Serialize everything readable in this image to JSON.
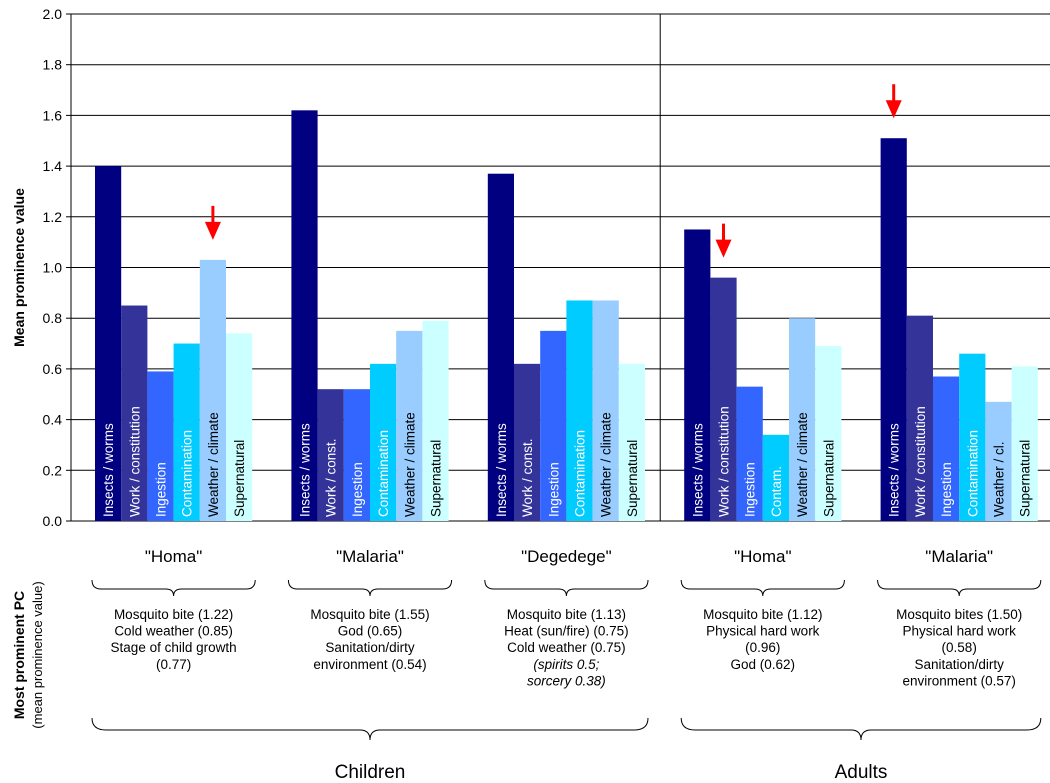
{
  "chart_data": {
    "type": "bar",
    "ylabel": "Mean prominence value",
    "ylim": [
      0,
      2.0
    ],
    "yticks": [
      "0.0",
      "0.2",
      "0.4",
      "0.6",
      "0.8",
      "1.0",
      "1.2",
      "1.4",
      "1.6",
      "1.8",
      "2.0"
    ],
    "grid": true,
    "colors": [
      "#000080",
      "#333399",
      "#3366ff",
      "#00ccff",
      "#99ccff",
      "#ccffff"
    ],
    "populations": [
      {
        "name": "Children",
        "groups": [
          0,
          1,
          2
        ]
      },
      {
        "name": "Adults",
        "groups": [
          3,
          4
        ]
      }
    ],
    "groups": [
      {
        "name": "\"Homa\"",
        "bars": [
          {
            "label": "Insects / worms",
            "value": 1.4
          },
          {
            "label": "Work / constitution",
            "value": 0.85
          },
          {
            "label": "Ingestion",
            "value": 0.59
          },
          {
            "label": "Contamination",
            "value": 0.7
          },
          {
            "label": "Weather / climate",
            "value": 1.03
          },
          {
            "label": "Supernatural",
            "value": 0.74
          }
        ],
        "arrow_on": 4,
        "pc_lines": [
          "Mosquito bite (1.22)",
          "Cold weather (0.85)",
          "Stage of child growth",
          "(0.77)"
        ]
      },
      {
        "name": "\"Malaria\"",
        "bars": [
          {
            "label": "Insects / worms",
            "value": 1.62
          },
          {
            "label": "Work / const.",
            "value": 0.52
          },
          {
            "label": "Ingestion",
            "value": 0.52
          },
          {
            "label": "Contamination",
            "value": 0.62
          },
          {
            "label": "Weather / climate",
            "value": 0.75
          },
          {
            "label": "Supernatural",
            "value": 0.79
          }
        ],
        "arrow_on": null,
        "pc_lines": [
          "Mosquito bite (1.55)",
          "God (0.65)",
          "Sanitation/dirty",
          "environment (0.54)"
        ]
      },
      {
        "name": "\"Degedege\"",
        "bars": [
          {
            "label": "Insects / worms",
            "value": 1.37
          },
          {
            "label": "Work / const.",
            "value": 0.62
          },
          {
            "label": "Ingestion",
            "value": 0.75
          },
          {
            "label": "Contamination",
            "value": 0.87
          },
          {
            "label": "Weather / climate",
            "value": 0.87
          },
          {
            "label": "Supernatural",
            "value": 0.62
          }
        ],
        "arrow_on": null,
        "pc_lines": [
          "Mosquito bite (1.13)",
          "Heat (sun/fire) (0.75)",
          "Cold weather (0.75)"
        ],
        "pc_italic_lines": [
          "(spirits 0.5;",
          "sorcery 0.38)"
        ]
      },
      {
        "name": "\"Homa\"",
        "bars": [
          {
            "label": "Insects / worms",
            "value": 1.15
          },
          {
            "label": "Work / constitution",
            "value": 0.96
          },
          {
            "label": "Ingestion",
            "value": 0.53
          },
          {
            "label": "Contam.",
            "value": 0.34
          },
          {
            "label": "Weather / climate",
            "value": 0.8
          },
          {
            "label": "Supernatural",
            "value": 0.69
          }
        ],
        "arrow_on": 1,
        "pc_lines": [
          "Mosquito bite (1.12)",
          "Physical hard work",
          "(0.96)",
          "God (0.62)"
        ]
      },
      {
        "name": "\"Malaria\"",
        "bars": [
          {
            "label": "Insects / worms",
            "value": 1.51
          },
          {
            "label": "Work / constitution",
            "value": 0.81
          },
          {
            "label": "Ingestion",
            "value": 0.57
          },
          {
            "label": "Contamination",
            "value": 0.66
          },
          {
            "label": "Weather / cl.",
            "value": 0.47
          },
          {
            "label": "Supernatural",
            "value": 0.61
          }
        ],
        "arrow_on": 0,
        "pc_lines": [
          "Mosquito bites (1.50)",
          "Physical hard work",
          "(0.58)",
          "Sanitation/dirty",
          "environment (0.57)"
        ]
      }
    ],
    "pc_title": "Most prominent PC",
    "pc_subtitle": "(mean prominence value)",
    "arrow_color": "#ff0000"
  }
}
